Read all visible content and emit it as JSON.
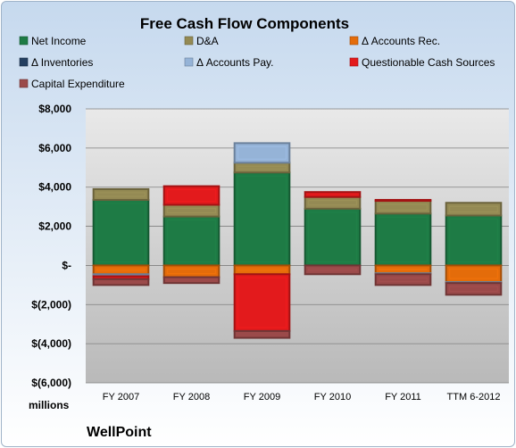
{
  "chart_data": {
    "type": "bar",
    "stacked": true,
    "title": "Free Cash Flow Components",
    "categories": [
      "FY 2007",
      "FY 2008",
      "FY 2009",
      "FY 2010",
      "FY 2011",
      "TTM 6-2012"
    ],
    "y_tick_labels": [
      "$8,000",
      "$6,000",
      "$4,000",
      "$2,000",
      "$-",
      "$(2,000)",
      "$(4,000)",
      "$(6,000)"
    ],
    "y_tick_values": [
      8000,
      6000,
      4000,
      2000,
      0,
      -2000,
      -4000,
      -6000
    ],
    "ylim": [
      -6000,
      8000
    ],
    "ylabel": "",
    "xlabel": "",
    "units_label": "millions",
    "grid": true,
    "legend_position": "top",
    "series": [
      {
        "name": "Net Income",
        "color": "#1e7b45",
        "values": [
          3350,
          2500,
          4750,
          2900,
          2650,
          2550
        ]
      },
      {
        "name": "D&A",
        "color": "#948a54",
        "values": [
          550,
          600,
          500,
          600,
          650,
          650
        ]
      },
      {
        "name": "Δ Accounts Rec.",
        "color": "#e46c0a",
        "values": [
          -450,
          -600,
          -450,
          0,
          -400,
          -850
        ]
      },
      {
        "name": "Δ Inventories",
        "color": "#243f60",
        "values": [
          0,
          0,
          0,
          0,
          0,
          0
        ]
      },
      {
        "name": "Δ Accounts Pay.",
        "color": "#95b3d7",
        "values": [
          -100,
          0,
          1000,
          0,
          -50,
          -50
        ]
      },
      {
        "name": "Questionable Cash Sources",
        "color": "#e31a1c",
        "values": [
          -150,
          950,
          -2900,
          250,
          50,
          0
        ]
      },
      {
        "name": "Capital Expenditure",
        "color": "#9b4a4a",
        "values": [
          -300,
          -300,
          -350,
          -450,
          -550,
          -600
        ]
      }
    ]
  },
  "company_label": "WellPoint"
}
